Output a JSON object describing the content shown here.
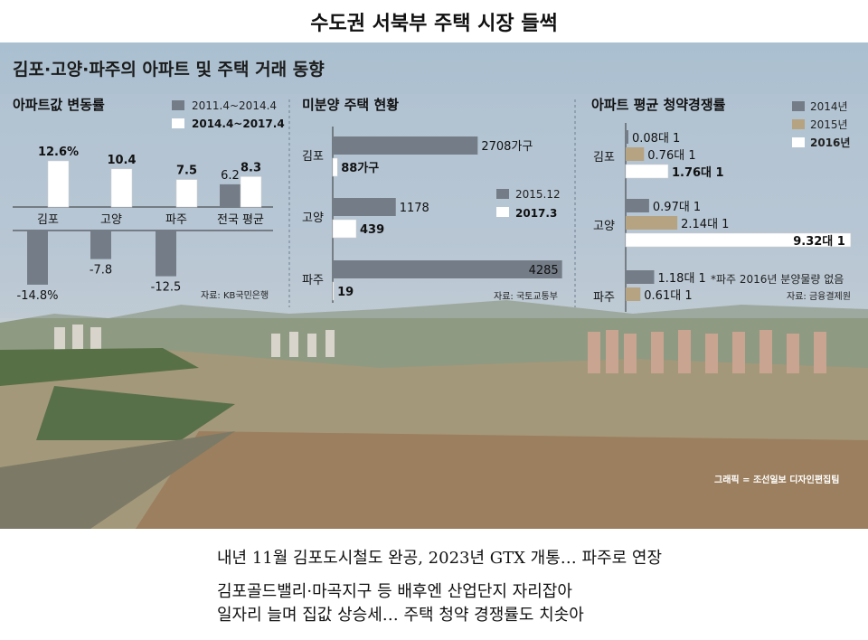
{
  "title": "수도권 서북부 주택 시장 들썩",
  "header": "김포·고양·파주의 아파트 및 주택 거래 동향",
  "credit": "그래픽 = 조선일보 디자인편집팀",
  "subtexts": [
    "내년 11월 김포도시철도 완공, 2023년 GTX 개통… 파주로 연장",
    "김포골드밸리·마곡지구 등 배후엔 산업단지 자리잡아",
    "일자리 늘며 집값 상승세…  주택 청약 경쟁률도 치솟아"
  ],
  "colors": {
    "dark": "#747d87",
    "white": "#ffffff",
    "tan": "#b5a382"
  },
  "chart_data": [
    {
      "type": "bar",
      "title": "아파트값 변동률",
      "categories": [
        "김포",
        "고양",
        "파주",
        "전국 평균"
      ],
      "series": [
        {
          "name": "2011.4~2014.4",
          "values": [
            -14.8,
            -7.8,
            -12.5,
            6.2
          ],
          "labels": [
            "-14.8%",
            "-7.8",
            "-12.5",
            "6.2"
          ]
        },
        {
          "name": "2014.4~2017.4",
          "values": [
            12.6,
            10.4,
            7.5,
            8.3
          ],
          "labels": [
            "12.6%",
            "10.4",
            "7.5",
            "8.3"
          ]
        }
      ],
      "source": "자료: KB국민은행"
    },
    {
      "type": "bar",
      "orientation": "horizontal",
      "title": "미분양 주택 현황",
      "categories": [
        "김포",
        "고양",
        "파주"
      ],
      "series": [
        {
          "name": "2015.12",
          "values": [
            2708,
            1178,
            4285
          ],
          "labels": [
            "2708가구",
            "1178",
            "4285"
          ]
        },
        {
          "name": "2017.3",
          "values": [
            88,
            439,
            19
          ],
          "labels": [
            "88가구",
            "439",
            "19"
          ]
        }
      ],
      "source": "자료: 국토교통부"
    },
    {
      "type": "bar",
      "orientation": "horizontal",
      "title": "아파트 평균 청약경쟁률",
      "categories": [
        "김포",
        "고양",
        "파주"
      ],
      "series": [
        {
          "name": "2014년",
          "values": [
            0.08,
            0.97,
            1.18
          ],
          "labels": [
            "0.08대 1",
            "0.97대 1",
            "1.18대 1"
          ]
        },
        {
          "name": "2015년",
          "values": [
            0.76,
            2.14,
            0.61
          ],
          "labels": [
            "0.76대 1",
            "2.14대 1",
            "0.61대 1"
          ]
        },
        {
          "name": "2016년",
          "values": [
            1.76,
            9.32,
            null
          ],
          "labels": [
            "1.76대 1",
            "9.32대 1",
            ""
          ]
        }
      ],
      "note": "*파주 2016년 분양물량 없음",
      "source": "자료: 금융결제원"
    }
  ]
}
